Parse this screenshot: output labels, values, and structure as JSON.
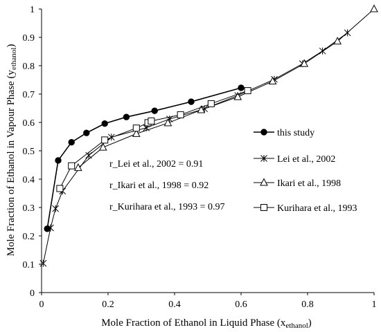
{
  "chart_data": {
    "type": "line",
    "xlabel": "Mole Fraction of Ethanol in Liquid Phase (x",
    "xlabel_sub": "ethanol",
    "xlabel_tail": ")",
    "ylabel": "Mole Fraction of Ethanol in Vapour Phase (y",
    "ylabel_sub": "ethanol",
    "ylabel_tail": ")",
    "xlim": [
      0,
      1
    ],
    "ylim": [
      0,
      1
    ],
    "x_ticks": [
      "0",
      "0.2",
      "0.4",
      "0.6",
      "0.8",
      "1"
    ],
    "y_ticks": [
      "0",
      "0.1",
      "0.2",
      "0.3",
      "0.4",
      "0.5",
      "0.6",
      "0.7",
      "0.8",
      "0.9",
      "1"
    ],
    "grid": false,
    "legend_position": "right",
    "annotations": [
      "r_Lei et al., 2002 = 0.91",
      "r_Ikari et al., 1998 = 0.92",
      "r_Kurihara et al., 1993 = 0.97"
    ],
    "series": [
      {
        "name": "this study",
        "marker": "filled-circle",
        "points": [
          [
            0.017,
            0.225
          ],
          [
            0.05,
            0.466
          ],
          [
            0.09,
            0.53
          ],
          [
            0.135,
            0.563
          ],
          [
            0.19,
            0.596
          ],
          [
            0.255,
            0.619
          ],
          [
            0.34,
            0.641
          ],
          [
            0.45,
            0.673
          ],
          [
            0.6,
            0.722
          ]
        ]
      },
      {
        "name": "Lei et al., 2002",
        "marker": "star",
        "points": [
          [
            0.005,
            0.103
          ],
          [
            0.027,
            0.228
          ],
          [
            0.042,
            0.296
          ],
          [
            0.063,
            0.358
          ],
          [
            0.142,
            0.484
          ],
          [
            0.21,
            0.548
          ],
          [
            0.315,
            0.581
          ],
          [
            0.385,
            0.612
          ],
          [
            0.49,
            0.648
          ],
          [
            0.59,
            0.695
          ],
          [
            0.7,
            0.752
          ],
          [
            0.785,
            0.807
          ],
          [
            0.845,
            0.852
          ],
          [
            0.92,
            0.916
          ]
        ]
      },
      {
        "name": "Ikari et al., 1998",
        "marker": "open-triangle",
        "points": [
          [
            0.11,
            0.44
          ],
          [
            0.185,
            0.512
          ],
          [
            0.285,
            0.56
          ],
          [
            0.38,
            0.598
          ],
          [
            0.48,
            0.644
          ],
          [
            0.59,
            0.69
          ],
          [
            0.695,
            0.745
          ],
          [
            0.79,
            0.807
          ],
          [
            0.89,
            0.886
          ],
          [
            1.0,
            1.0
          ]
        ]
      },
      {
        "name": "Kurihara et al., 1993",
        "marker": "open-square",
        "points": [
          [
            0.055,
            0.367
          ],
          [
            0.09,
            0.447
          ],
          [
            0.19,
            0.538
          ],
          [
            0.285,
            0.58
          ],
          [
            0.32,
            0.599
          ],
          [
            0.33,
            0.605
          ],
          [
            0.418,
            0.627
          ],
          [
            0.51,
            0.666
          ],
          [
            0.62,
            0.712
          ]
        ]
      }
    ]
  }
}
